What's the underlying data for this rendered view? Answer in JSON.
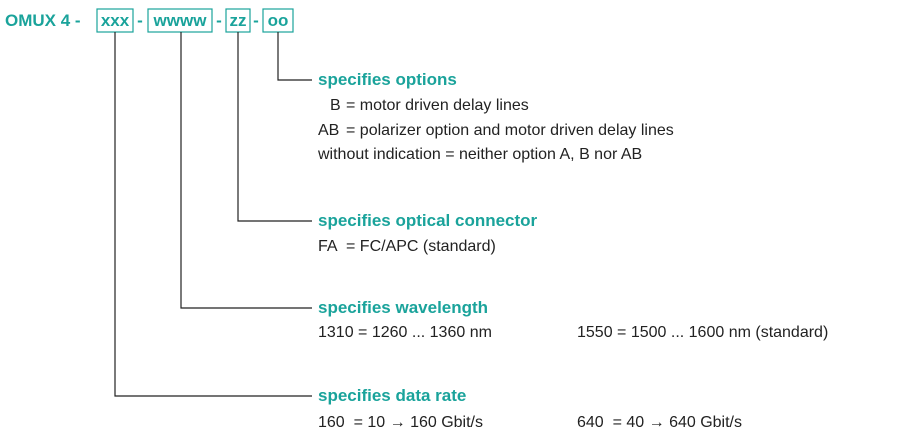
{
  "code": {
    "prefix": "OMUX 4 -",
    "separator": "-",
    "fields": [
      "xxx",
      "wwww",
      "zz",
      "oo"
    ]
  },
  "sections": [
    {
      "heading": "specifies options",
      "rows": [
        [
          "B",
          "= motor driven delay lines"
        ],
        [
          "AB",
          "= polarizer option and motor driven delay lines"
        ],
        [
          "without indication = neither option A, B nor AB"
        ]
      ]
    },
    {
      "heading": "specifies optical connector",
      "rows": [
        [
          "FA",
          "= FC/APC (standard)"
        ]
      ]
    },
    {
      "heading": "specifies wavelength",
      "rows": [
        [
          "1310 = 1260 ... 1360 nm",
          "1550 = 1500 ... 1600 nm (standard)"
        ]
      ]
    },
    {
      "heading": "specifies data rate",
      "rows": [
        [
          "160  = 10 → 160 Gbit/s",
          "640  = 40 → 640 Gbit/s"
        ]
      ]
    }
  ]
}
